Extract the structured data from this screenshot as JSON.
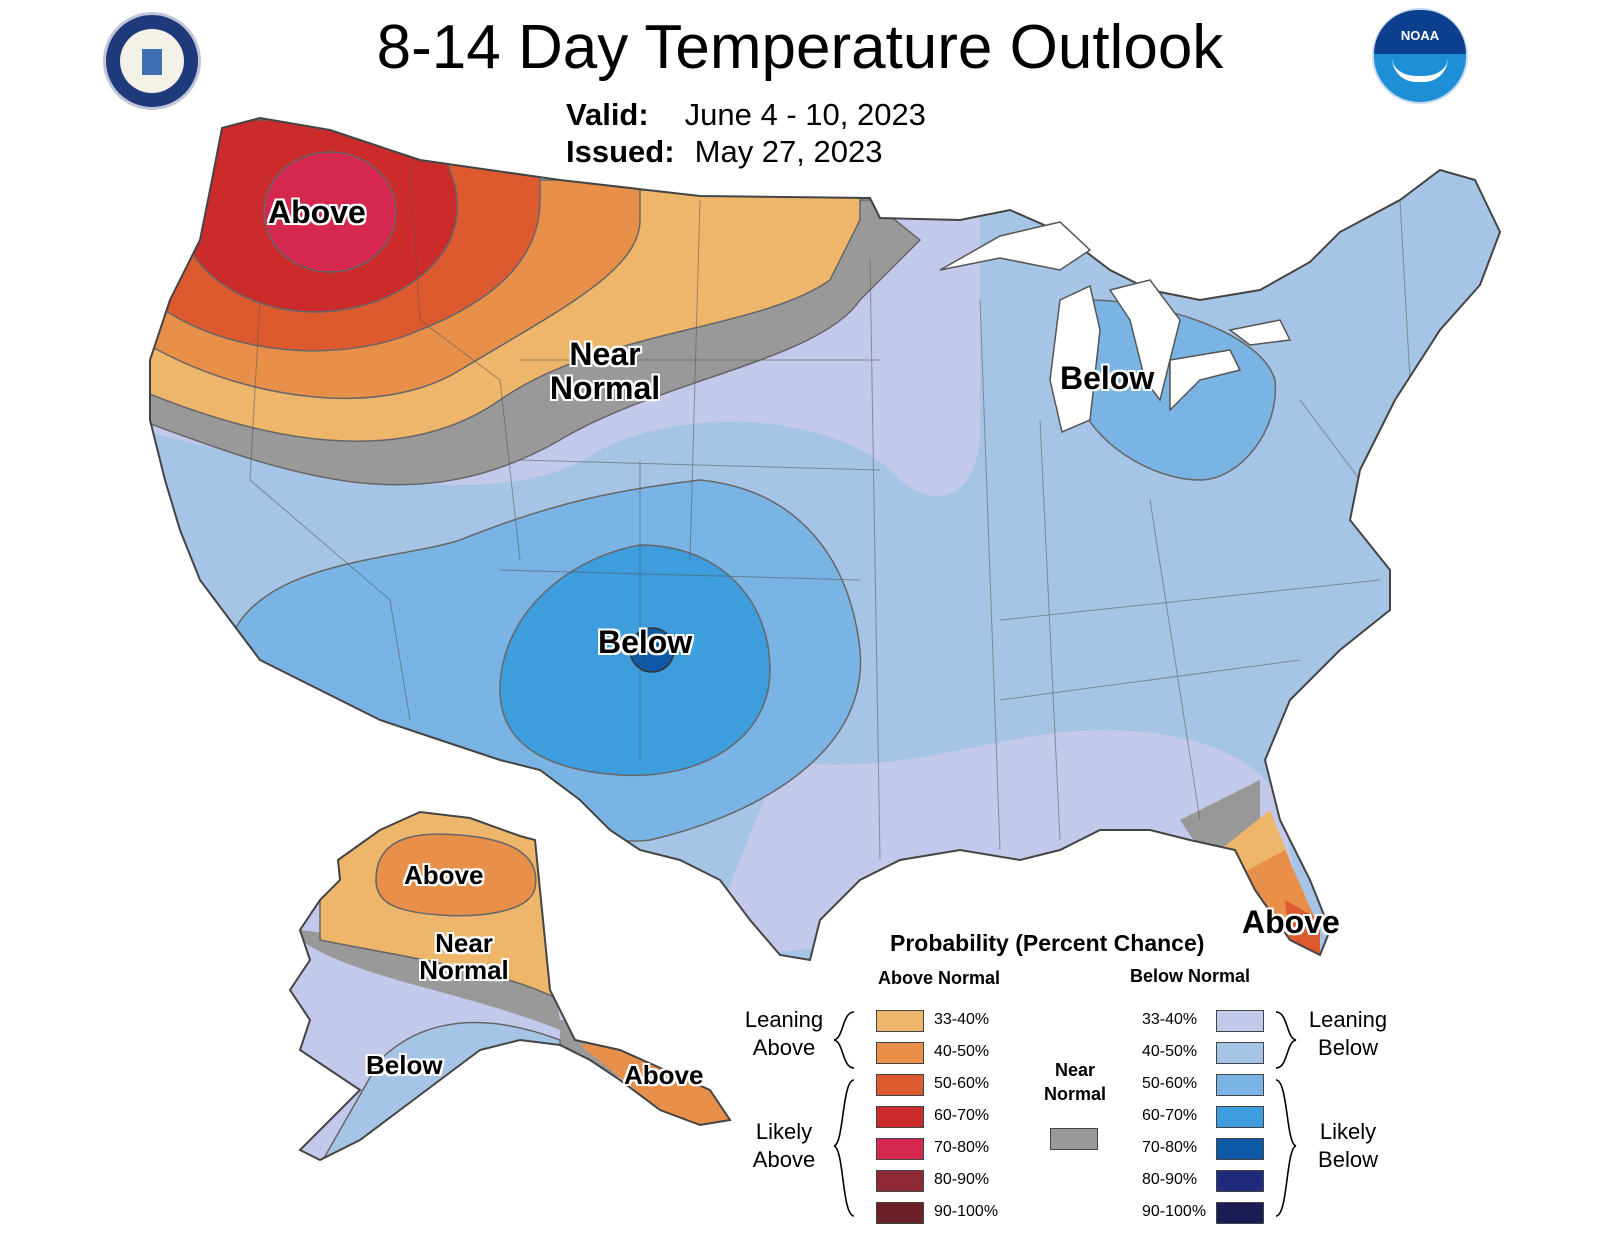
{
  "header": {
    "title": "8-14 Day Temperature Outlook",
    "valid_label": "Valid:",
    "valid_value": "June 4 - 10, 2023",
    "issued_label": "Issued:",
    "issued_value": "May 27, 2023"
  },
  "logos": {
    "left": "department-of-commerce-seal",
    "right": "noaa-logo",
    "noaa_text": "NOAA"
  },
  "map_labels": {
    "nw_above": "Above",
    "near_normal_line1": "Near",
    "near_normal_line2": "Normal",
    "great_lakes_below": "Below",
    "sw_below": "Below",
    "florida_above": "Above",
    "ak_above": "Above",
    "ak_near_line1": "Near",
    "ak_near_line2": "Normal",
    "ak_below": "Below",
    "ak_se_above": "Above"
  },
  "legend": {
    "title": "Probability (Percent Chance)",
    "above_header": "Above Normal",
    "below_header": "Below Normal",
    "near_normal_line1": "Near",
    "near_normal_line2": "Normal",
    "leaning_above_line1": "Leaning",
    "leaning_above_line2": "Above",
    "likely_above_line1": "Likely",
    "likely_above_line2": "Above",
    "leaning_below_line1": "Leaning",
    "leaning_below_line2": "Below",
    "likely_below_line1": "Likely",
    "likely_below_line2": "Below",
    "above": [
      {
        "label": "33-40%",
        "color": "#eeb66b"
      },
      {
        "label": "40-50%",
        "color": "#e8904a"
      },
      {
        "label": "50-60%",
        "color": "#dd5a2e"
      },
      {
        "label": "60-70%",
        "color": "#cc2b2c"
      },
      {
        "label": "70-80%",
        "color": "#d6284f"
      },
      {
        "label": "80-90%",
        "color": "#8e2a35"
      },
      {
        "label": "90-100%",
        "color": "#6b2027"
      }
    ],
    "below": [
      {
        "label": "33-40%",
        "color": "#c3c9ea"
      },
      {
        "label": "40-50%",
        "color": "#a6c5e6"
      },
      {
        "label": "50-60%",
        "color": "#7ab4e4"
      },
      {
        "label": "60-70%",
        "color": "#3e9ddc"
      },
      {
        "label": "70-80%",
        "color": "#0e5aa6"
      },
      {
        "label": "80-90%",
        "color": "#1f2a7b"
      },
      {
        "label": "90-100%",
        "color": "#1c1c55"
      }
    ],
    "near_color": "#999999"
  }
}
